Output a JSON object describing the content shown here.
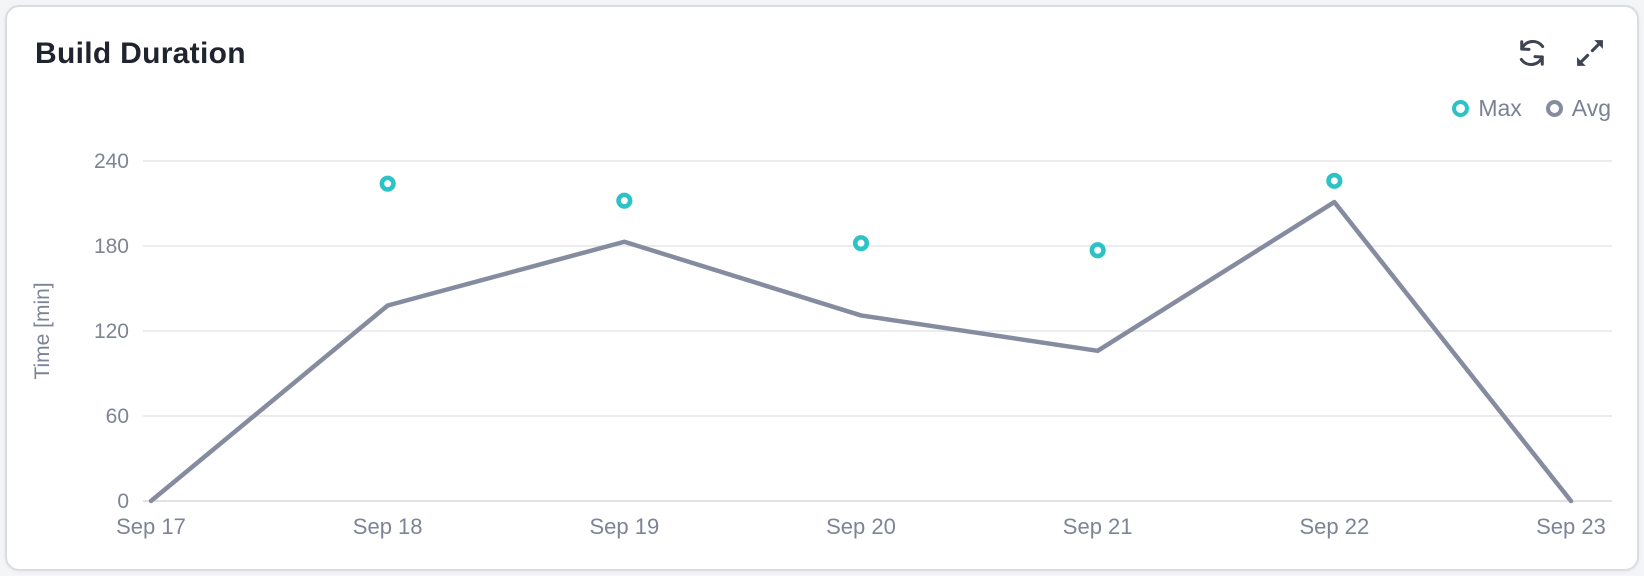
{
  "card": {
    "title": "Build Duration"
  },
  "toolbar": {
    "refresh_icon": "refresh",
    "expand_icon": "expand"
  },
  "colors": {
    "accent_teal": "#2bc3c5",
    "line_gray": "#868ca0",
    "title_text": "#20242e",
    "axis_text": "#7d8496",
    "icon": "#3e4454",
    "card_border": "#dadce2",
    "card_background": "#ffffff"
  },
  "chart_data": {
    "type": "line",
    "title": "Build Duration",
    "categories": [
      "Sep 17",
      "Sep 18",
      "Sep 19",
      "Sep 20",
      "Sep 21",
      "Sep 22",
      "Sep 23"
    ],
    "xlabel": "",
    "ylabel": "Time [min]",
    "ylim": [
      0,
      240
    ],
    "yticks": [
      0,
      60,
      120,
      180,
      240
    ],
    "grid": true,
    "grid_color": "#e5e6ea",
    "grid_color_zero": "#d6d8dd",
    "legend_position": "top-right",
    "series": [
      {
        "name": "Max",
        "type": "scatter",
        "color": "#2bc3c5",
        "values": [
          null,
          224,
          212,
          182,
          177,
          226,
          null
        ]
      },
      {
        "name": "Avg",
        "type": "line",
        "color": "#868ca0",
        "values": [
          0,
          138,
          183,
          131,
          106,
          211,
          0
        ]
      }
    ]
  }
}
